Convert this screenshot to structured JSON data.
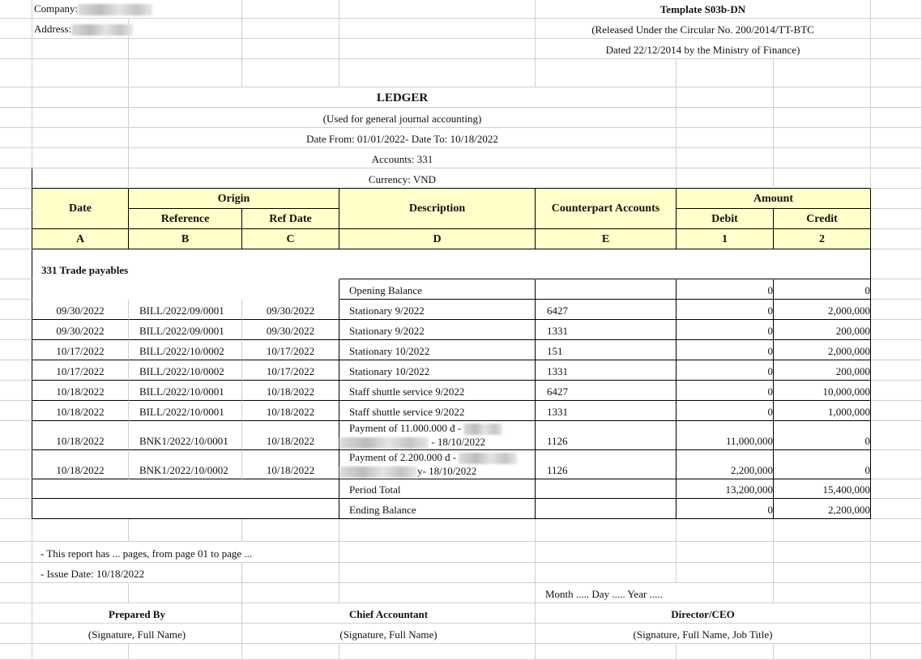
{
  "header": {
    "company_label": "Company:",
    "address_label": "Address:",
    "template": "Template S03b-DN",
    "released": "(Released Under the Circular No. 200/2014/TT-BTC",
    "dated": "Dated 22/12/2014 by the Ministry of Finance)"
  },
  "report": {
    "title": "LEDGER",
    "subtitle": "(Used for general journal accounting)",
    "date_range": "Date From: 01/01/2022- Date To: 10/18/2022",
    "accounts": "Accounts: 331",
    "currency": "Currency: VND"
  },
  "columns": {
    "date": "Date",
    "origin": "Origin",
    "reference": "Reference",
    "ref_date": "Ref Date",
    "description": "Description",
    "counterpart": "Counterpart Accounts",
    "amount": "Amount",
    "debit": "Debit",
    "credit": "Credit",
    "letters": [
      "A",
      "B",
      "C",
      "D",
      "E",
      "1",
      "2"
    ]
  },
  "section": "331 Trade payables",
  "opening": {
    "label": "Opening Balance",
    "debit": "0",
    "credit": "0"
  },
  "entries": [
    {
      "date": "09/30/2022",
      "ref": "BILL/2022/09/0001",
      "ref_date": "09/30/2022",
      "desc": "Stationary 9/2022",
      "account": "6427",
      "debit": "0",
      "credit": "2,000,000"
    },
    {
      "date": "09/30/2022",
      "ref": "BILL/2022/09/0001",
      "ref_date": "09/30/2022",
      "desc": "Stationary 9/2022",
      "account": "1331",
      "debit": "0",
      "credit": "200,000"
    },
    {
      "date": "10/17/2022",
      "ref": "BILL/2022/10/0002",
      "ref_date": "10/17/2022",
      "desc": "Stationary 10/2022",
      "account": "151",
      "debit": "0",
      "credit": "2,000,000"
    },
    {
      "date": "10/17/2022",
      "ref": "BILL/2022/10/0002",
      "ref_date": "10/17/2022",
      "desc": "Stationary 10/2022",
      "account": "1331",
      "debit": "0",
      "credit": "200,000"
    },
    {
      "date": "10/18/2022",
      "ref": "BILL/2022/10/0001",
      "ref_date": "10/18/2022",
      "desc": " Staff shuttle service 9/2022",
      "account": "6427",
      "debit": "0",
      "credit": "10,000,000"
    },
    {
      "date": "10/18/2022",
      "ref": "BILL/2022/10/0001",
      "ref_date": "10/18/2022",
      "desc": " Staff shuttle service 9/2022",
      "account": "1331",
      "debit": "0",
      "credit": "1,000,000"
    },
    {
      "date": "10/18/2022",
      "ref": "BNK1/2022/10/0001",
      "ref_date": "10/18/2022",
      "desc": "Payment of 11.000.000 đ -",
      "desc2": " - 18/10/2022",
      "account": "1126",
      "debit": "11,000,000",
      "credit": "0"
    },
    {
      "date": "10/18/2022",
      "ref": "BNK1/2022/10/0002",
      "ref_date": "10/18/2022",
      "desc": "Payment of 2.200.000 đ -",
      "desc2": "y- 18/10/2022",
      "account": "1126",
      "debit": "2,200,000",
      "credit": "0"
    }
  ],
  "period_total": {
    "label": "Period Total",
    "debit": "13,200,000",
    "credit": "15,400,000"
  },
  "ending": {
    "label": "Ending Balance",
    "debit": "0",
    "credit": "2,200,000"
  },
  "footer": {
    "pages_note": "- This report has ... pages, from page 01 to page ...",
    "issue_date": "- Issue Date: 10/18/2022",
    "date_line": "Month ..... Day ..... Year .....",
    "prepared_by": "Prepared By",
    "prepared_sig": "(Signature, Full Name)",
    "chief_accountant": "Chief Accountant",
    "chief_sig": "(Signature, Full Name)",
    "director": "Director/CEO",
    "director_sig": "(Signature, Full Name, Job Title)"
  },
  "colors": {
    "header_fill": "#ffffc9",
    "border": "#000000",
    "gridline": "#cfcfcf"
  }
}
